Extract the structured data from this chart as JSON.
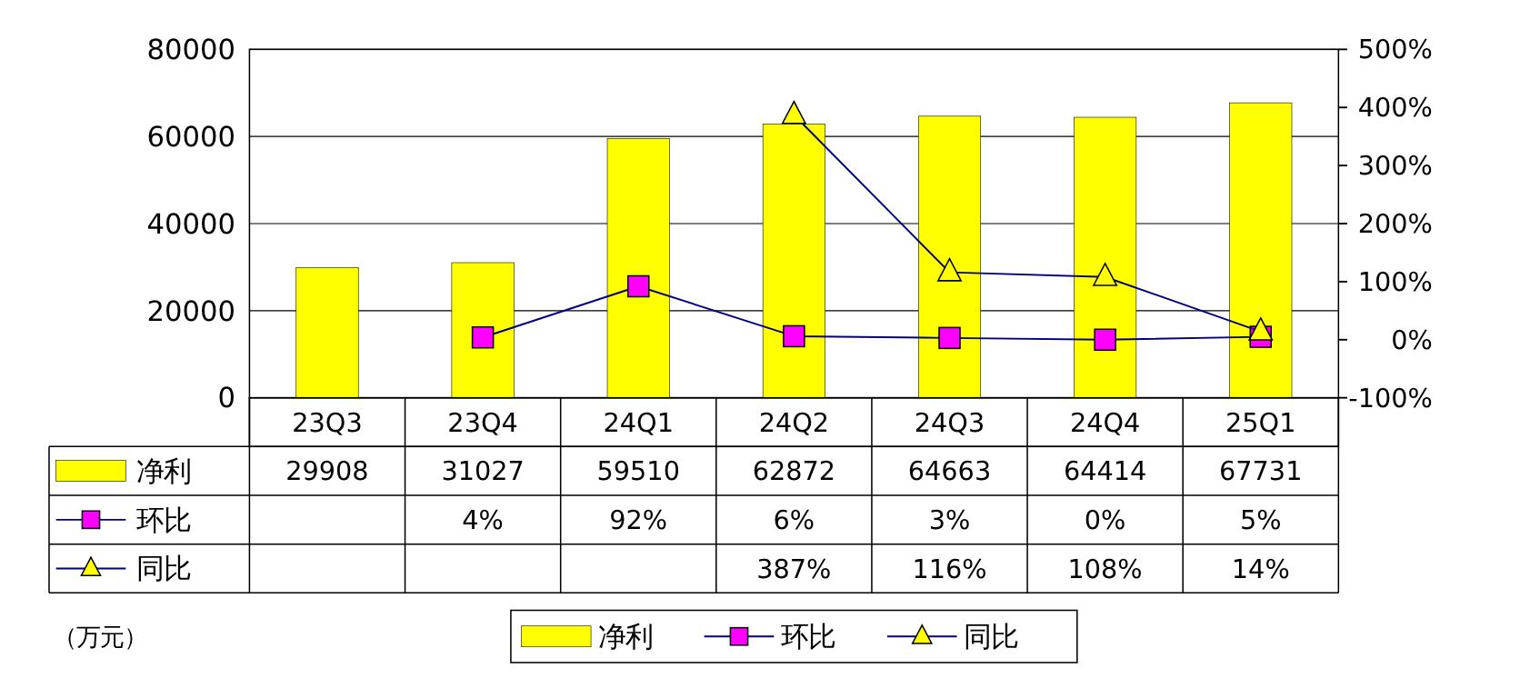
{
  "chart_data": {
    "type": "bar",
    "categories": [
      "23Q3",
      "23Q4",
      "24Q1",
      "24Q2",
      "24Q3",
      "24Q4",
      "25Q1"
    ],
    "series": [
      {
        "name": "净利",
        "color": "#ffff00",
        "values": [
          29908,
          31027,
          59510,
          62872,
          64663,
          64414,
          67731
        ],
        "value_labels": [
          "29908",
          "31027",
          "59510",
          "62872",
          "64663",
          "64414",
          "67731"
        ]
      },
      {
        "name": "环比",
        "type": "line",
        "axis": "y2",
        "color": "#ff00ff",
        "marker": "square",
        "values": [
          null,
          4,
          92,
          6,
          3,
          0,
          5
        ],
        "value_labels": [
          null,
          "4%",
          "92%",
          "6%",
          "3%",
          "0%",
          "5%"
        ]
      },
      {
        "name": "同比",
        "type": "line",
        "axis": "y2",
        "color": "#ffff00",
        "marker": "triangle",
        "values": [
          null,
          null,
          null,
          387,
          116,
          108,
          14
        ],
        "value_labels": [
          null,
          null,
          null,
          "387%",
          "116%",
          "108%",
          "14%"
        ]
      }
    ],
    "ylim": [
      0,
      80000
    ],
    "yticks": [
      0,
      20000,
      40000,
      60000,
      80000
    ],
    "y2lim": [
      -100,
      500
    ],
    "y2ticks": [
      {
        "value": -100,
        "label": "-100%"
      },
      {
        "value": 0,
        "label": "0%"
      },
      {
        "value": 100,
        "label": "100%"
      },
      {
        "value": 200,
        "label": "200%"
      },
      {
        "value": 300,
        "label": "300%"
      },
      {
        "value": 400,
        "label": "400%"
      },
      {
        "value": 500,
        "label": "500%"
      }
    ],
    "grid": "y",
    "legend": "bottom",
    "data_labels": true,
    "annotations": [
      "（万元）"
    ]
  }
}
